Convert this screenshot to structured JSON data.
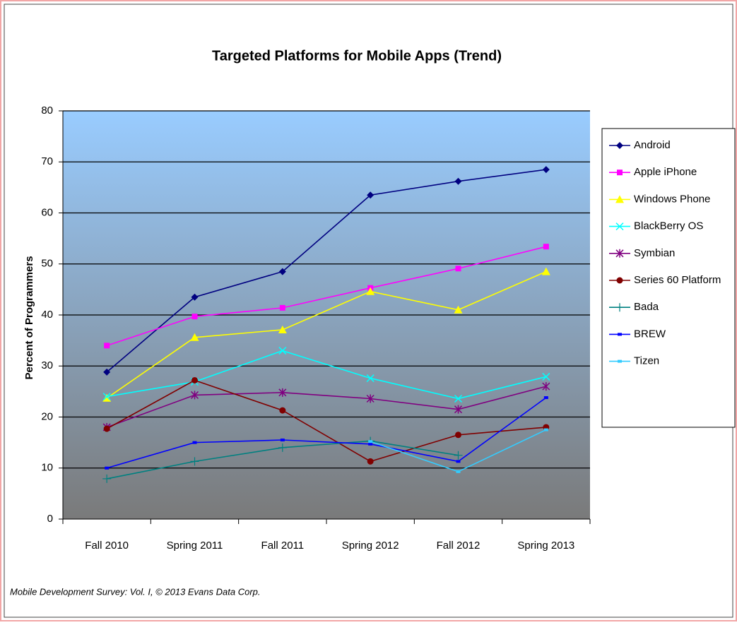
{
  "chart_data": {
    "type": "line",
    "title": "Targeted Platforms for Mobile Apps (Trend)",
    "y_label": "Percent of Programmers",
    "footnote": "Mobile Development Survey: Vol. I, © 2013 Evans Data Corp.",
    "categories": [
      "Fall 2010",
      "Spring 2011",
      "Fall 2011",
      "Spring 2012",
      "Fall 2012",
      "Spring 2013"
    ],
    "ylim": [
      0,
      80
    ],
    "yticks": [
      0,
      10,
      20,
      30,
      40,
      50,
      60,
      70,
      80
    ],
    "grid": true,
    "legend": "right",
    "series": [
      {
        "name": "Android",
        "color": "#000080",
        "marker": "diamond",
        "values": [
          28.8,
          43.5,
          48.5,
          63.5,
          66.2,
          68.5
        ]
      },
      {
        "name": "Apple iPhone",
        "color": "#ff00ff",
        "marker": "square",
        "values": [
          34,
          39.7,
          41.4,
          45.3,
          49.1,
          53.4
        ]
      },
      {
        "name": "Windows Phone",
        "color": "#ffff00",
        "marker": "triangle",
        "values": [
          23.7,
          35.6,
          37.1,
          44.6,
          41,
          48.5
        ]
      },
      {
        "name": "BlackBerry OS",
        "color": "#00ffff",
        "marker": "x",
        "values": [
          24,
          26.9,
          33,
          27.6,
          23.6,
          27.9
        ]
      },
      {
        "name": "Symbian",
        "color": "#800080",
        "marker": "star",
        "values": [
          18,
          24.3,
          24.8,
          23.6,
          21.5,
          26
        ]
      },
      {
        "name": "Series 60 Platform",
        "color": "#800000",
        "marker": "circle",
        "values": [
          17.7,
          27.2,
          21.3,
          11.3,
          16.5,
          18
        ]
      },
      {
        "name": "Bada",
        "color": "#008080",
        "marker": "plus",
        "values": [
          7.9,
          11.3,
          14,
          15.3,
          12.5,
          null
        ]
      },
      {
        "name": "BREW",
        "color": "#0000ff",
        "marker": "dash",
        "values": [
          10,
          15,
          15.5,
          14.7,
          11.3,
          23.8
        ]
      },
      {
        "name": "Tizen",
        "color": "#33ccff",
        "marker": "dash",
        "values": [
          null,
          null,
          null,
          15.2,
          9.3,
          17.5
        ]
      }
    ]
  }
}
